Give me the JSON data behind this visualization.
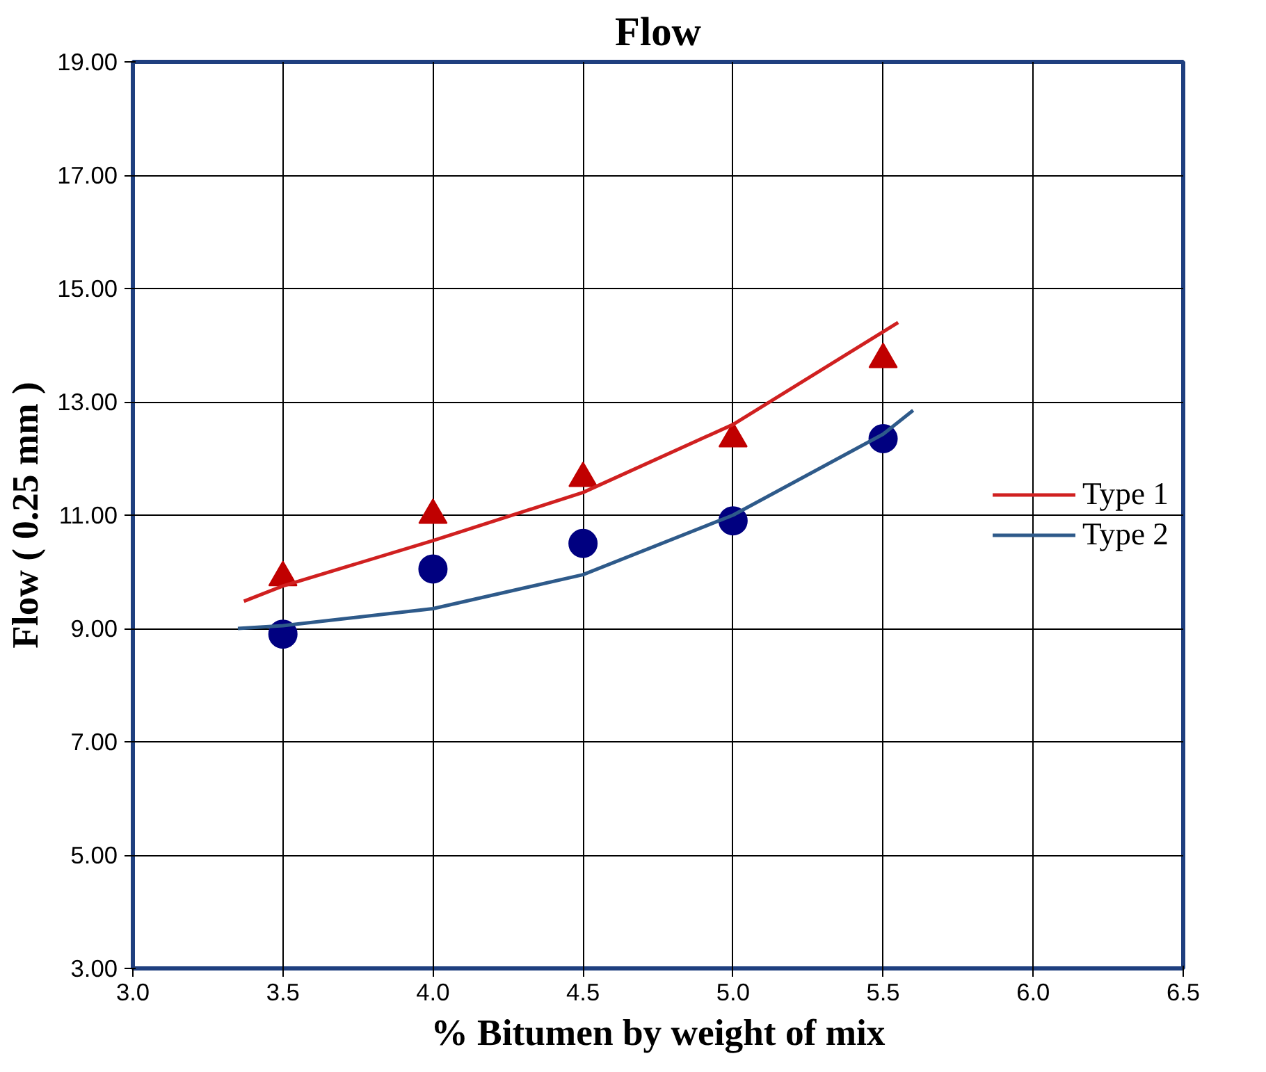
{
  "chart_data": {
    "type": "scatter",
    "title": "Flow",
    "xlabel": "% Bitumen by weight of mix",
    "ylabel": "Flow ( 0.25 mm )",
    "x": [
      3.5,
      4.0,
      4.5,
      5.0,
      5.5
    ],
    "series": [
      {
        "marker": "triangle",
        "color": "#c00000",
        "values": [
          9.9,
          11.0,
          11.65,
          12.35,
          13.75
        ]
      },
      {
        "marker": "circle",
        "color": "#000080",
        "values": [
          8.9,
          10.05,
          10.5,
          10.9,
          12.35
        ]
      },
      {
        "type": "line",
        "name": "Type 1",
        "color": "#d02020",
        "x": [
          3.37,
          3.5,
          4.0,
          4.5,
          5.0,
          5.55
        ],
        "values": [
          9.48,
          9.75,
          10.55,
          11.4,
          12.6,
          14.4
        ]
      },
      {
        "type": "line",
        "name": "Type 2",
        "color": "#2e5a8a",
        "x": [
          3.35,
          3.5,
          4.0,
          4.5,
          5.0,
          5.5,
          5.6
        ],
        "values": [
          9.0,
          9.05,
          9.35,
          9.95,
          11.0,
          12.43,
          12.85
        ]
      }
    ],
    "xlim": [
      3.0,
      6.5
    ],
    "xticks": [
      {
        "value": 3.0,
        "label": "3.0"
      },
      {
        "value": 3.5,
        "label": "3.5"
      },
      {
        "value": 4.0,
        "label": "4.0"
      },
      {
        "value": 4.5,
        "label": "4.5"
      },
      {
        "value": 5.0,
        "label": "5.0"
      },
      {
        "value": 5.5,
        "label": "5.5"
      },
      {
        "value": 6.0,
        "label": "6.0"
      },
      {
        "value": 6.5,
        "label": "6.5"
      }
    ],
    "ylim": [
      3,
      19
    ],
    "yticks": [
      {
        "value": 3,
        "label": "3.00"
      },
      {
        "value": 5,
        "label": "5.00"
      },
      {
        "value": 7,
        "label": "7.00"
      },
      {
        "value": 9,
        "label": "9.00"
      },
      {
        "value": 11,
        "label": "11.00"
      },
      {
        "value": 13,
        "label": "13.00"
      },
      {
        "value": 15,
        "label": "15.00"
      },
      {
        "value": 17,
        "label": "17.00"
      },
      {
        "value": 19,
        "label": "19.00"
      }
    ],
    "grid": true,
    "legend": "right"
  }
}
